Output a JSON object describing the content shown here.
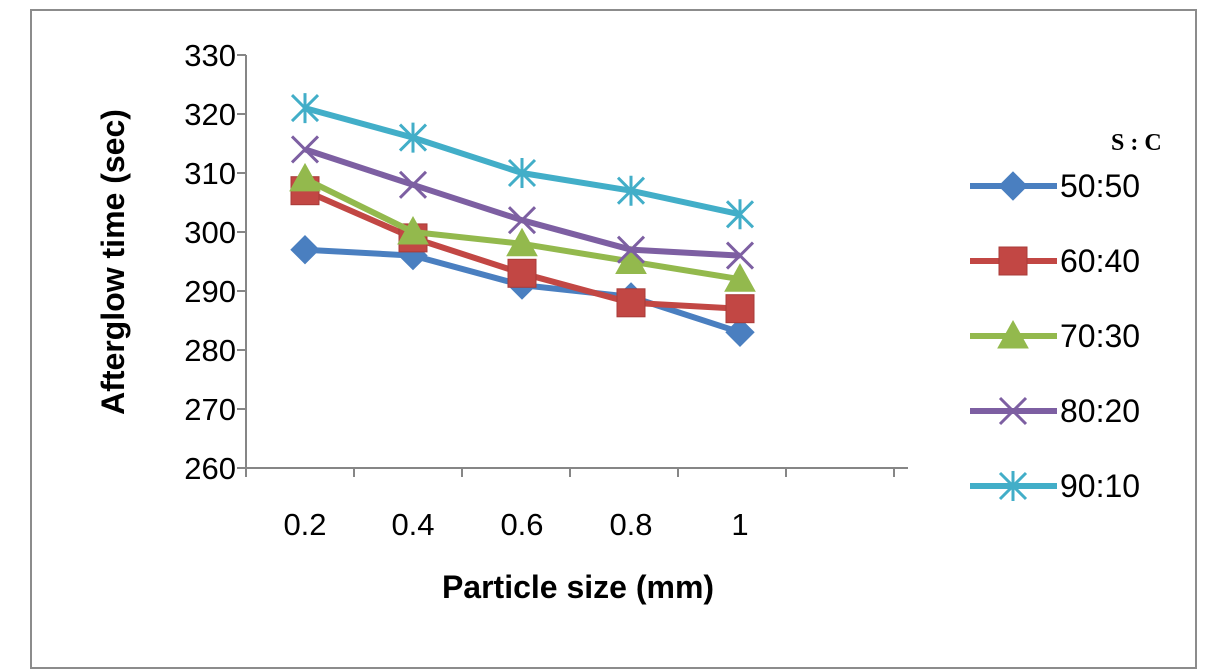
{
  "chart_data": {
    "type": "line",
    "x": [
      "0.2",
      "0.4",
      "0.6",
      "0.8",
      "1"
    ],
    "xlabel": "Particle size (mm)",
    "ylabel": "Afterglow time (sec)",
    "ylim": [
      260,
      330
    ],
    "yticks": [
      "330",
      "320",
      "310",
      "300",
      "290",
      "280",
      "270",
      "260"
    ],
    "grid": false,
    "legend_title": "S : C",
    "legend_position": "right",
    "series": [
      {
        "name": "50:50",
        "values": [
          297,
          296,
          291,
          289,
          283
        ],
        "color": "#4a7fc0",
        "marker": "diamond"
      },
      {
        "name": "60:40",
        "values": [
          307,
          299,
          293,
          288,
          287
        ],
        "color": "#c24744",
        "marker": "square"
      },
      {
        "name": "70:30",
        "values": [
          309,
          300,
          298,
          295,
          292
        ],
        "color": "#93b94d",
        "marker": "triangle"
      },
      {
        "name": "80:20",
        "values": [
          314,
          308,
          302,
          297,
          296
        ],
        "color": "#7d5fa2",
        "marker": "x"
      },
      {
        "name": "90:10",
        "values": [
          321,
          316,
          310,
          307,
          303
        ],
        "color": "#42aec8",
        "marker": "star"
      }
    ]
  }
}
